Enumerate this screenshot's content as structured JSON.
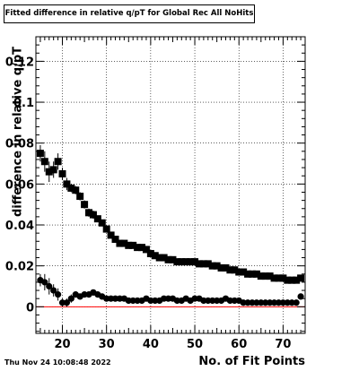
{
  "chart_data": {
    "type": "scatter",
    "title": "Fitted difference in relative q/pT for Global Rec All NoHits",
    "xlabel": "No. of Fit Points",
    "ylabel": "difference in relative q/pT",
    "xlim": [
      14,
      75
    ],
    "ylim": [
      -0.013,
      0.132
    ],
    "xticks": [
      20,
      30,
      40,
      50,
      60,
      70
    ],
    "xtick_labels": [
      "20",
      "30",
      "40",
      "50",
      "60",
      "70"
    ],
    "yticks": [
      0,
      0.02,
      0.04,
      0.06,
      0.08,
      0.1,
      0.12
    ],
    "ytick_labels": [
      "0",
      "0.02",
      "0.04",
      "0.06",
      "0.08",
      "0.1",
      "0.12"
    ],
    "grid": true,
    "reference_line": {
      "y": 0,
      "color": "#ff0000"
    },
    "footer": "Thu Nov 24 10:08:48 2022",
    "series": [
      {
        "marker": "square",
        "x": [
          15,
          16,
          17,
          18,
          19,
          20,
          21,
          22,
          23,
          24,
          25,
          26,
          27,
          28,
          29,
          30,
          31,
          32,
          33,
          34,
          35,
          36,
          37,
          38,
          39,
          40,
          41,
          42,
          43,
          44,
          45,
          46,
          47,
          48,
          49,
          50,
          51,
          52,
          53,
          54,
          55,
          56,
          57,
          58,
          59,
          60,
          61,
          62,
          63,
          64,
          65,
          66,
          67,
          68,
          69,
          70,
          71,
          72,
          73,
          74
        ],
        "y": [
          0.075,
          0.071,
          0.066,
          0.067,
          0.071,
          0.065,
          0.06,
          0.058,
          0.057,
          0.054,
          0.05,
          0.046,
          0.045,
          0.043,
          0.041,
          0.038,
          0.035,
          0.033,
          0.031,
          0.031,
          0.03,
          0.03,
          0.029,
          0.029,
          0.028,
          0.026,
          0.025,
          0.024,
          0.024,
          0.023,
          0.023,
          0.022,
          0.022,
          0.022,
          0.022,
          0.022,
          0.021,
          0.021,
          0.021,
          0.02,
          0.02,
          0.019,
          0.019,
          0.018,
          0.018,
          0.017,
          0.017,
          0.016,
          0.016,
          0.016,
          0.015,
          0.015,
          0.015,
          0.014,
          0.014,
          0.014,
          0.013,
          0.013,
          0.013,
          0.014
        ],
        "err": [
          0.004,
          0.005,
          0.005,
          0.004,
          0.004,
          0.003,
          0.003,
          0.002,
          0.002,
          0.002,
          0.002,
          0.002,
          0.002,
          0.0015,
          0.0015,
          0.0015,
          0.001,
          0.001,
          0.001,
          0.001,
          0.001,
          0.001,
          0.001,
          0.001,
          0.001,
          0.001,
          0.001,
          0.001,
          0.001,
          0.001,
          0.001,
          0.001,
          0.001,
          0.001,
          0.001,
          0.001,
          0.001,
          0.001,
          0.001,
          0.001,
          0.001,
          0.001,
          0.001,
          0.001,
          0.001,
          0.001,
          0.001,
          0.001,
          0.001,
          0.001,
          0.001,
          0.001,
          0.001,
          0.001,
          0.001,
          0.001,
          0.001,
          0.001,
          0.001,
          0.001
        ]
      },
      {
        "marker": "circle",
        "x": [
          15,
          16,
          17,
          18,
          19,
          20,
          21,
          22,
          23,
          24,
          25,
          26,
          27,
          28,
          29,
          30,
          31,
          32,
          33,
          34,
          35,
          36,
          37,
          38,
          39,
          40,
          41,
          42,
          43,
          44,
          45,
          46,
          47,
          48,
          49,
          50,
          51,
          52,
          53,
          54,
          55,
          56,
          57,
          58,
          59,
          60,
          61,
          62,
          63,
          64,
          65,
          66,
          67,
          68,
          69,
          70,
          71,
          72,
          73,
          74
        ],
        "y": [
          0.013,
          0.012,
          0.01,
          0.008,
          0.006,
          0.002,
          0.002,
          0.004,
          0.006,
          0.005,
          0.006,
          0.006,
          0.007,
          0.006,
          0.005,
          0.004,
          0.004,
          0.004,
          0.004,
          0.004,
          0.003,
          0.003,
          0.003,
          0.003,
          0.004,
          0.003,
          0.003,
          0.003,
          0.004,
          0.004,
          0.004,
          0.003,
          0.003,
          0.004,
          0.003,
          0.004,
          0.004,
          0.003,
          0.003,
          0.003,
          0.003,
          0.003,
          0.004,
          0.003,
          0.003,
          0.003,
          0.002,
          0.002,
          0.002,
          0.002,
          0.002,
          0.002,
          0.002,
          0.002,
          0.002,
          0.002,
          0.002,
          0.002,
          0.002,
          0.005
        ],
        "err": [
          0.003,
          0.004,
          0.004,
          0.003,
          0.003,
          0.002,
          0.002,
          0.002,
          0.001,
          0.001,
          0.001,
          0.001,
          0.001,
          0.001,
          0.001,
          0.001,
          0.001,
          0.001,
          0.001,
          0.001,
          0.001,
          0.001,
          0.001,
          0.001,
          0.001,
          0.001,
          0.001,
          0.001,
          0.001,
          0.001,
          0.001,
          0.001,
          0.001,
          0.001,
          0.001,
          0.001,
          0.001,
          0.001,
          0.001,
          0.001,
          0.001,
          0.001,
          0.001,
          0.001,
          0.001,
          0.001,
          0.001,
          0.001,
          0.001,
          0.001,
          0.001,
          0.001,
          0.001,
          0.001,
          0.001,
          0.001,
          0.001,
          0.001,
          0.001,
          0.001
        ]
      }
    ]
  }
}
